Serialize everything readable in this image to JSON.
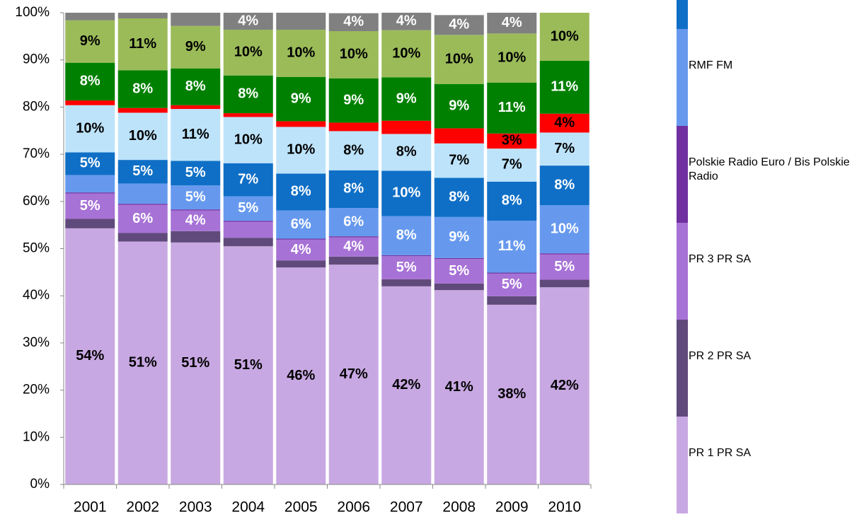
{
  "chart_data": {
    "type": "stacked-bar",
    "categories": [
      "2001",
      "2002",
      "2003",
      "2004",
      "2005",
      "2006",
      "2007",
      "2008",
      "2009",
      "2010"
    ],
    "ylim": [
      0,
      100
    ],
    "yticks": [
      {
        "value": 0,
        "label": "0%"
      },
      {
        "value": 10,
        "label": "10%"
      },
      {
        "value": 20,
        "label": "20%"
      },
      {
        "value": 30,
        "label": "30%"
      },
      {
        "value": 40,
        "label": "40%"
      },
      {
        "value": 50,
        "label": "50%"
      },
      {
        "value": 60,
        "label": "60%"
      },
      {
        "value": 70,
        "label": "70%"
      },
      {
        "value": 80,
        "label": "80%"
      },
      {
        "value": 90,
        "label": "90%"
      },
      {
        "value": 100,
        "label": "100%"
      }
    ],
    "series": [
      {
        "name": "PR 1 PR SA",
        "color": "#c8a8e2",
        "label_color": "#000000",
        "values": [
          54.3,
          51.5,
          51.3,
          50.5,
          46,
          46.6,
          42,
          41.2,
          38.1,
          41.8
        ],
        "value_labels": [
          "54%",
          "51%",
          "51%",
          "51%",
          "46%",
          "47%",
          "42%",
          "41%",
          "38%",
          "42%"
        ]
      },
      {
        "name": "PR 2 PR SA",
        "color": "#604a7b",
        "label_color": "#ffffff",
        "values": [
          2,
          1.8,
          2.4,
          1.8,
          1.5,
          1.7,
          1.5,
          1.4,
          1.8,
          1.6
        ],
        "value_labels": [
          null,
          null,
          null,
          null,
          null,
          null,
          null,
          null,
          null,
          null
        ]
      },
      {
        "name": "PR 3 PR SA",
        "color": "#a772d6",
        "label_color": "#ffffff",
        "values": [
          5.4,
          6,
          4.4,
          3.4,
          4.4,
          4.1,
          4.9,
          5.2,
          4.8,
          5.4
        ],
        "value_labels": [
          "5%",
          "6%",
          "4%",
          null,
          "4%",
          "4%",
          "5%",
          "5%",
          "5%",
          "5%"
        ]
      },
      {
        "name": "Polskie Radio Euro / Bis Polskie Radio",
        "color": "#7030a0",
        "label_color": "#ffffff",
        "values": [
          0.2,
          0.2,
          0.2,
          0.2,
          0.2,
          0.2,
          0.2,
          0.2,
          0.2,
          0.2
        ],
        "value_labels": [
          null,
          null,
          null,
          null,
          null,
          null,
          null,
          null,
          null,
          null
        ]
      },
      {
        "name": "RMF FM",
        "color": "#6699ee",
        "label_color": "#ffffff",
        "values": [
          3.7,
          4.3,
          5.1,
          5.2,
          6,
          6,
          8.3,
          8.7,
          11,
          10.2
        ],
        "value_labels": [
          null,
          null,
          "5%",
          "5%",
          "6%",
          "6%",
          "8%",
          "9%",
          "11%",
          "10%"
        ]
      },
      {
        "color": "#0f6fc6",
        "label_color": "#ffffff",
        "values": [
          4.8,
          5,
          5.2,
          7,
          7.8,
          8,
          9.6,
          8.3,
          8.3,
          8.4
        ],
        "value_labels": [
          "5%",
          "5%",
          "5%",
          "7%",
          "8%",
          "8%",
          "10%",
          "8%",
          "8%",
          "8%"
        ]
      },
      {
        "color": "#bde3fa",
        "label_color": "#000000",
        "values": [
          10,
          10,
          11,
          9.8,
          9.9,
          8.3,
          7.8,
          7.3,
          7,
          7
        ],
        "value_labels": [
          "10%",
          "10%",
          "11%",
          "10%",
          "10%",
          "8%",
          "8%",
          "7%",
          "7%",
          "7%"
        ]
      },
      {
        "color": "#ff0000",
        "label_color": "#000000",
        "values": [
          1,
          1,
          0.8,
          0.8,
          1.2,
          1.8,
          2.8,
          3.2,
          3.2,
          4
        ],
        "value_labels": [
          null,
          null,
          null,
          null,
          null,
          null,
          null,
          null,
          "3%",
          "4%"
        ]
      },
      {
        "color": "#008000",
        "label_color": "#ffffff",
        "values": [
          8,
          8,
          7.8,
          8,
          9.4,
          9.4,
          9.2,
          9.4,
          10.8,
          11.2
        ],
        "value_labels": [
          "8%",
          "8%",
          "8%",
          "8%",
          "9%",
          "9%",
          "9%",
          "9%",
          "11%",
          "11%"
        ]
      },
      {
        "color": "#9bbb59",
        "label_color": "#000000",
        "values": [
          9,
          11,
          9,
          9.7,
          10,
          10,
          10,
          10.4,
          10.4,
          10.2
        ],
        "value_labels": [
          "9%",
          "11%",
          "9%",
          "10%",
          "10%",
          "10%",
          "10%",
          "10%",
          "10%",
          "10%"
        ]
      },
      {
        "color": "#808080",
        "label_color": "#ffffff",
        "values": [
          1.6,
          1.2,
          2.8,
          3.6,
          3.6,
          3.8,
          3.7,
          4.2,
          4.4,
          0
        ],
        "value_labels": [
          null,
          null,
          null,
          "4%",
          null,
          "4%",
          "4%",
          "4%",
          "4%",
          null
        ]
      }
    ]
  }
}
